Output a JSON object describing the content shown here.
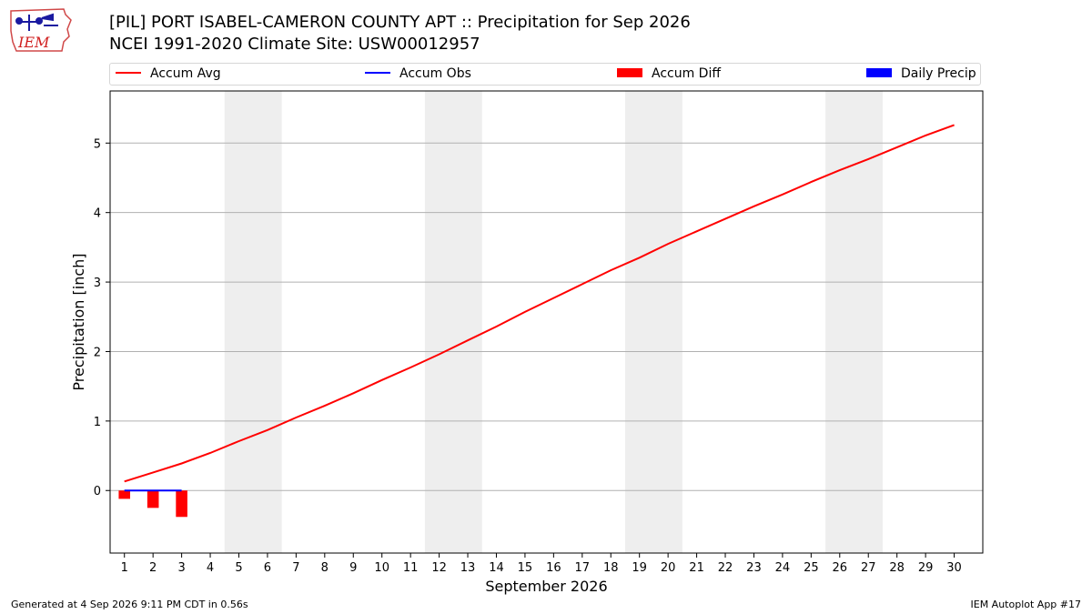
{
  "header": {
    "title_line1": "[PIL] PORT ISABEL-CAMERON COUNTY APT :: Precipitation for Sep 2026",
    "title_line2": "NCEI 1991-2020 Climate Site: USW00012957",
    "logo_text": "IEM"
  },
  "legend": [
    {
      "label": "Accum Avg",
      "kind": "line",
      "color": "#ff0000"
    },
    {
      "label": "Accum Obs",
      "kind": "line",
      "color": "#0000ff"
    },
    {
      "label": "Accum Diff",
      "kind": "patch",
      "color": "#ff0000"
    },
    {
      "label": "Daily Precip",
      "kind": "patch",
      "color": "#0000ff"
    }
  ],
  "footer": {
    "left": "Generated at 4 Sep 2026 9:11 PM CDT in 0.56s",
    "right": "IEM Autoplot App #17"
  },
  "chart_data": {
    "type": "line",
    "xlabel": "September 2026",
    "ylabel": "Precipitation [inch]",
    "xlim": [
      0.5,
      31
    ],
    "ylim": [
      -0.9,
      5.75
    ],
    "x_ticks": [
      1,
      2,
      3,
      4,
      5,
      6,
      7,
      8,
      9,
      10,
      11,
      12,
      13,
      14,
      15,
      16,
      17,
      18,
      19,
      20,
      21,
      22,
      23,
      24,
      25,
      26,
      27,
      28,
      29,
      30
    ],
    "y_ticks": [
      0,
      1,
      2,
      3,
      4,
      5
    ],
    "grid": "horizontal",
    "weekend_bands": [
      [
        4.5,
        6.5
      ],
      [
        11.5,
        13.5
      ],
      [
        18.5,
        20.5
      ],
      [
        25.5,
        27.5
      ]
    ],
    "band_color": "#eeeeee",
    "series": [
      {
        "name": "Accum Avg",
        "kind": "line",
        "color": "#ff0000",
        "x": [
          1,
          2,
          3,
          4,
          5,
          6,
          7,
          8,
          9,
          10,
          11,
          12,
          13,
          14,
          15,
          16,
          17,
          18,
          19,
          20,
          21,
          22,
          23,
          24,
          25,
          26,
          27,
          28,
          29,
          30
        ],
        "values": [
          0.13,
          0.26,
          0.39,
          0.54,
          0.71,
          0.87,
          1.05,
          1.22,
          1.4,
          1.59,
          1.77,
          1.96,
          2.16,
          2.36,
          2.57,
          2.77,
          2.97,
          3.17,
          3.35,
          3.55,
          3.73,
          3.91,
          4.09,
          4.26,
          4.44,
          4.61,
          4.77,
          4.94,
          5.11,
          5.26
        ]
      },
      {
        "name": "Accum Obs",
        "kind": "line",
        "color": "#0000ff",
        "x": [
          1,
          2,
          3
        ],
        "values": [
          0.0,
          0.0,
          0.0
        ]
      },
      {
        "name": "Accum Diff",
        "kind": "bar",
        "color": "#ff0000",
        "x": [
          1,
          2,
          3
        ],
        "values": [
          -0.12,
          -0.25,
          -0.38
        ]
      },
      {
        "name": "Daily Precip",
        "kind": "bar",
        "color": "#0000ff",
        "x": [
          1,
          2,
          3
        ],
        "values": [
          0.0,
          0.0,
          0.0
        ]
      }
    ]
  }
}
